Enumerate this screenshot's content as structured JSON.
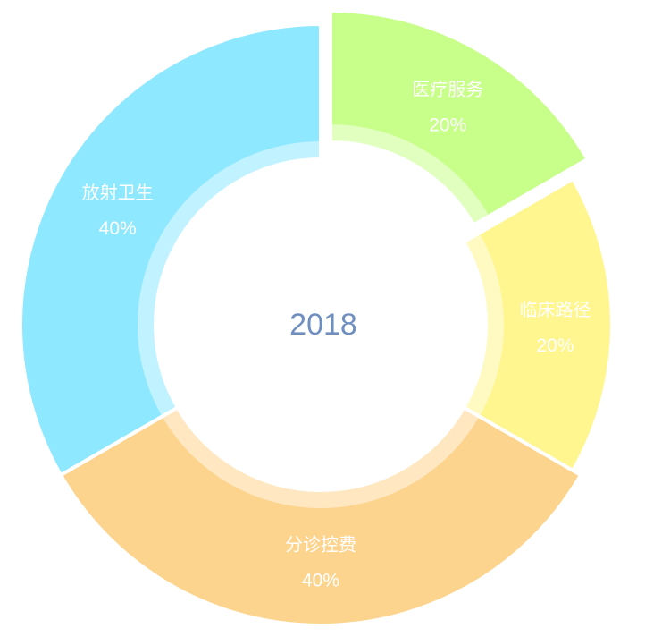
{
  "chart_data": {
    "type": "pie",
    "variant": "donut",
    "center_label": "2018",
    "slices": [
      {
        "label": "医疗服务",
        "value": 20,
        "value_text": "20%",
        "color": "#c8ff8a",
        "exploded": true
      },
      {
        "label": "临床路径",
        "value": 20,
        "value_text": "20%",
        "color": "#fff68f",
        "exploded": false
      },
      {
        "label": "分诊控费",
        "value": 40,
        "value_text": "40%",
        "color": "#fdd48e",
        "exploded": false
      },
      {
        "label": "放射卫生",
        "value": 40,
        "value_text": "40%",
        "color": "#8ee8ff",
        "exploded": false
      }
    ],
    "legend": "none",
    "start_angle_deg": -90
  }
}
